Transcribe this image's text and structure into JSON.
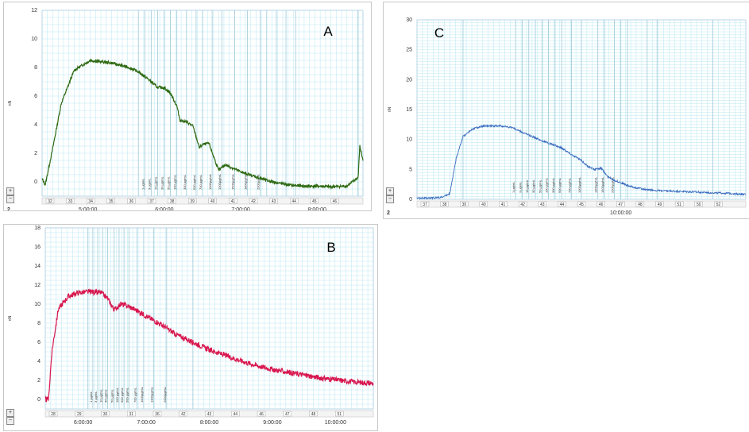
{
  "colors": {
    "A": "#2d6a12",
    "B": "#d8174f",
    "C": "#3a6cc0",
    "grid": "#a9e2ee",
    "marker": "#9ec9d8"
  },
  "chart_data": [
    {
      "panel": "A",
      "type": "line",
      "ylabel": "nN",
      "ylim": [
        -1,
        12
      ],
      "yticks": [
        "0",
        "2",
        "4",
        "6",
        "8",
        "10",
        "12"
      ],
      "xticks": [
        "5:00:00",
        "6:00:00",
        "7:00:00",
        "8:00:00"
      ],
      "series": [
        {
          "x": [
            0,
            0.01,
            0.03,
            0.06,
            0.1,
            0.15,
            0.22,
            0.27,
            0.3,
            0.33,
            0.36,
            0.38,
            0.4,
            0.42,
            0.43,
            0.45,
            0.47,
            0.49,
            0.5,
            0.52,
            0.55,
            0.57,
            0.6,
            0.63,
            0.66,
            0.7,
            0.74,
            0.78,
            0.82,
            0.86,
            0.9,
            0.95,
            0.985,
            0.99,
            1.0
          ],
          "y": [
            0.2,
            -0.2,
            2,
            5.5,
            7.8,
            8.5,
            8.3,
            8.0,
            7.7,
            7.2,
            6.6,
            6.6,
            6.2,
            5.3,
            4.3,
            4.2,
            3.9,
            2.4,
            2.6,
            2.7,
            0.8,
            1.2,
            0.9,
            0.6,
            0.4,
            0.1,
            -0.1,
            -0.25,
            -0.3,
            -0.3,
            -0.35,
            -0.3,
            0.3,
            2.5,
            1.5
          ]
        }
      ],
      "markers": [
        0.3,
        0.32,
        0.34,
        0.36,
        0.38,
        0.4,
        0.42,
        0.45,
        0.48,
        0.5,
        0.53,
        0.56,
        0.6,
        0.64,
        0.68,
        0.7,
        0.73,
        0.76,
        0.79,
        0.985
      ],
      "marker_labels": [
        "1 µg/mL",
        "3 µg/mL",
        "10 µg/mL",
        "30 µg/mL",
        "50 µg/mL",
        "100 µg/mL",
        "300 µg/mL",
        "500 µg/mL",
        "700 µg/mL",
        "1000µg/mL",
        "1300µg/mL",
        "1500µg/mL",
        "1800µg/mL",
        "2000µg/mL"
      ],
      "event_numbers": [
        "32",
        "33",
        "34",
        "35",
        "36",
        "37",
        "38",
        "39",
        "40",
        "41",
        "42",
        "43",
        "44",
        "45",
        "46"
      ],
      "bottom_left": "2",
      "panel_letter": "A"
    },
    {
      "panel": "B",
      "type": "line",
      "ylabel": "nN",
      "ylim": [
        -1,
        18
      ],
      "yticks": [
        "0",
        "2",
        "4",
        "6",
        "8",
        "10",
        "12",
        "14",
        "16",
        "18"
      ],
      "xticks": [
        "6:00:00",
        "7:00:00",
        "8:00:00",
        "9:00:00",
        "10:00:00"
      ],
      "series": [
        {
          "x": [
            0,
            0.01,
            0.02,
            0.04,
            0.07,
            0.1,
            0.14,
            0.17,
            0.19,
            0.21,
            0.23,
            0.25,
            0.27,
            0.3,
            0.35,
            0.4,
            0.45,
            0.5,
            0.55,
            0.6,
            0.65,
            0.7,
            0.75,
            0.8,
            0.85,
            0.9,
            0.95,
            1.0
          ],
          "y": [
            0,
            0,
            5,
            9.5,
            10.8,
            11.2,
            11.3,
            11.2,
            10.6,
            9.4,
            10,
            9.8,
            9.5,
            8.9,
            7.9,
            6.8,
            6.0,
            5.2,
            4.6,
            4.0,
            3.5,
            3.1,
            2.8,
            2.5,
            2.2,
            2.0,
            1.8,
            1.7
          ]
        }
      ],
      "markers": [
        0.13,
        0.145,
        0.16,
        0.175,
        0.19,
        0.21,
        0.225,
        0.24,
        0.255,
        0.28,
        0.3,
        0.33,
        0.37,
        0.45
      ],
      "marker_labels": [
        "1 µg/mL",
        "3 µg/mL",
        "10 µg/mL",
        "30 µg/mL",
        "50 µg/mL",
        "100 µg/mL",
        "300 µg/mL",
        "500 µg/mL",
        "700 µg/mL",
        "1000µg/mL",
        "1300µg/mL",
        "2000µg/mL"
      ],
      "event_numbers": [
        "28",
        "29",
        "30",
        "31",
        "36",
        "42",
        "43",
        "44",
        "46",
        "47",
        "48",
        "51"
      ],
      "bottom_left": "2",
      "panel_letter": "B"
    },
    {
      "panel": "C",
      "type": "line",
      "ylabel": "nN",
      "ylim": [
        0,
        30
      ],
      "yticks": [
        "0",
        "5",
        "10",
        "15",
        "20",
        "25",
        "30"
      ],
      "xticks": [
        "10:00:00"
      ],
      "series": [
        {
          "x": [
            0,
            0.04,
            0.08,
            0.1,
            0.12,
            0.14,
            0.17,
            0.2,
            0.25,
            0.29,
            0.32,
            0.35,
            0.38,
            0.41,
            0.44,
            0.47,
            0.5,
            0.52,
            0.54,
            0.56,
            0.58,
            0.6,
            0.62,
            0.64,
            0.66,
            0.7,
            0.75,
            0.8,
            0.85,
            0.9,
            0.95,
            1.0
          ],
          "y": [
            0.2,
            0.2,
            0.4,
            1,
            7,
            10.5,
            11.8,
            12.2,
            12.3,
            12.0,
            11.2,
            10.5,
            9.8,
            9.2,
            8.6,
            7.5,
            6.5,
            5.5,
            5.0,
            5.2,
            3.8,
            3.2,
            2.8,
            2.3,
            2.0,
            1.6,
            1.4,
            1.3,
            1.2,
            1.1,
            1.0,
            0.8
          ]
        }
      ],
      "markers": [
        0.14,
        0.3,
        0.32,
        0.34,
        0.36,
        0.38,
        0.4,
        0.42,
        0.44,
        0.47,
        0.5,
        0.55,
        0.57,
        0.6,
        0.62,
        0.64,
        0.7,
        0.73,
        0.9
      ],
      "marker_labels": [
        "1 µg/mL",
        "3 µg/mL",
        "10 µg/mL",
        "30 µg/mL",
        "50 µg/mL",
        "100 µg/mL",
        "300 µg/mL",
        "500 µg/mL",
        "700 µg/mL",
        "1000µg/mL",
        "1300µg/mL",
        "1500µg/mL",
        "2000µg/mL"
      ],
      "event_numbers": [
        "37",
        "38",
        "39",
        "40",
        "41",
        "42",
        "43",
        "44",
        "45",
        "46",
        "47",
        "48",
        "49",
        "51",
        "50",
        "52"
      ],
      "bottom_left": "2",
      "panel_letter": "C"
    }
  ]
}
